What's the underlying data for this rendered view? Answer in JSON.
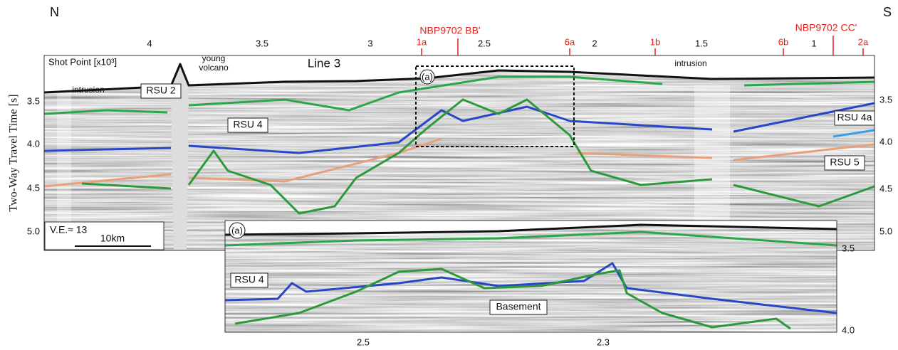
{
  "compass": {
    "north": "N",
    "south": "S"
  },
  "main_panel": {
    "title": "Line 3",
    "shot_point_label": "Shot Point [x10³]",
    "y_axis_label": "Two-Way Travel Time [s]",
    "shot_point_ticks": [
      "4",
      "3.5",
      "3",
      "2.5",
      "2",
      "1.5",
      "1"
    ],
    "crossing_lines": [
      "NBP9702 BB'",
      "NBP9702 CC'"
    ],
    "site_labels": [
      "1a",
      "6a",
      "1b",
      "6b",
      "2a"
    ],
    "left_ticks": [
      "3.5",
      "4.0",
      "4.5",
      "5.0"
    ],
    "right_ticks": [
      "3.5",
      "4.0",
      "4.5",
      "5.0"
    ],
    "volcano_label": [
      "young",
      "volcano"
    ],
    "intrusion_labels": [
      "intrusion",
      "intrusion"
    ],
    "horizon_labels": [
      "RSU 2",
      "RSU 4",
      "RSU 4a",
      "RSU 5"
    ],
    "box_label": "(a)",
    "vertical_exaggeration": "V.E.≈ 13",
    "scale_bar": "10km"
  },
  "inset": {
    "label": "(a)",
    "horizon_label": "RSU 4",
    "basement_label": "Basement",
    "right_ticks": [
      "3.5",
      "4.0"
    ],
    "bottom_ticks": [
      "2.5",
      "2.3"
    ]
  }
}
